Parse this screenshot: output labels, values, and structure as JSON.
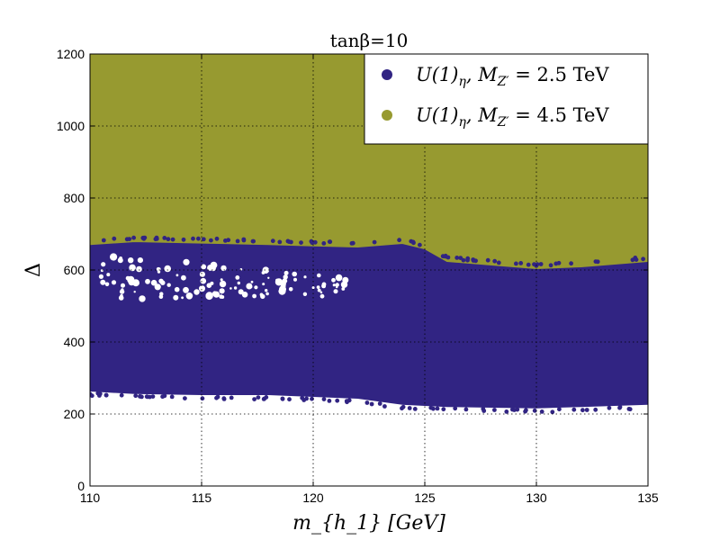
{
  "chart_data": {
    "type": "scatter",
    "title": "tanβ=10",
    "xlabel": "m_{h_1} [GeV]",
    "ylabel": "Δ",
    "xlim": [
      110,
      135
    ],
    "ylim": [
      0,
      1200
    ],
    "xticks": [
      110,
      115,
      120,
      125,
      130,
      135
    ],
    "yticks": [
      0,
      200,
      400,
      600,
      800,
      1000,
      1200
    ],
    "grid": true,
    "legend_position": "top-right",
    "series": [
      {
        "name": "U(1)_η, M_Z' = 2.5 TeV",
        "label_html": {
          "main": "U(1)",
          "sub": "η",
          "mid": ", M",
          "sub2": "Z′",
          "tail": " = 2.5 TeV"
        },
        "color": "#312483",
        "lower_boundary": [
          [
            110,
            265
          ],
          [
            112,
            258
          ],
          [
            115,
            255
          ],
          [
            118,
            255
          ],
          [
            120,
            250
          ],
          [
            122,
            245
          ],
          [
            124,
            228
          ],
          [
            126,
            222
          ],
          [
            128,
            220
          ],
          [
            130,
            218
          ],
          [
            132,
            222
          ],
          [
            135,
            228
          ]
        ],
        "upper_boundary": [
          [
            110,
            672
          ],
          [
            112,
            680
          ],
          [
            115,
            676
          ],
          [
            118,
            672
          ],
          [
            120,
            668
          ],
          [
            122,
            665
          ],
          [
            124,
            675
          ],
          [
            125,
            660
          ],
          [
            126,
            625
          ],
          [
            128,
            615
          ],
          [
            130,
            605
          ],
          [
            132,
            610
          ],
          [
            135,
            625
          ]
        ]
      },
      {
        "name": "U(1)_η, M_Z' = 4.5 TeV",
        "label_html": {
          "main": "U(1)",
          "sub": "η",
          "mid": ", M",
          "sub2": "Z′",
          "tail": " = 4.5 TeV"
        },
        "color": "#979a30",
        "lower_boundary": [
          [
            110,
            672
          ],
          [
            112,
            680
          ],
          [
            115,
            676
          ],
          [
            118,
            672
          ],
          [
            120,
            668
          ],
          [
            122,
            665
          ],
          [
            124,
            675
          ],
          [
            125,
            660
          ],
          [
            126,
            625
          ],
          [
            128,
            615
          ],
          [
            130,
            605
          ],
          [
            132,
            610
          ],
          [
            135,
            625
          ]
        ],
        "upper_boundary": [
          [
            110,
            1200
          ],
          [
            135,
            1200
          ]
        ]
      }
    ]
  }
}
